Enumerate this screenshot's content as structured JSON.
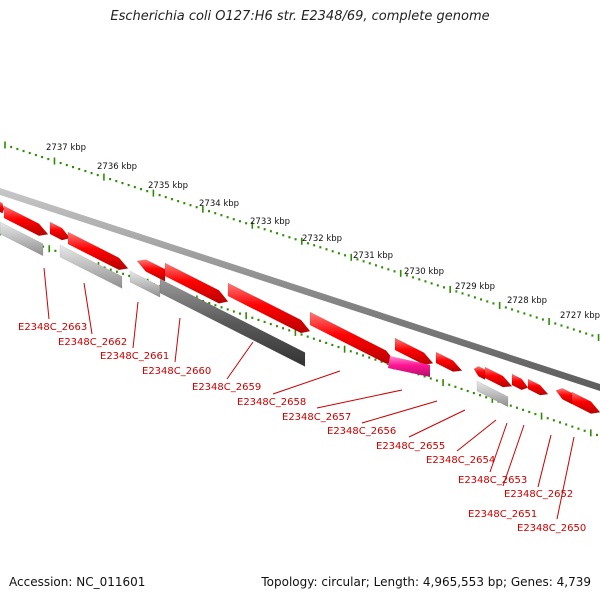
{
  "title": "Escherichia coli O127:H6 str. E2348/69, complete genome",
  "footer": {
    "accession": "Accession: NC_011601",
    "summary": "Topology: circular; Length: 4,965,553 bp; Genes: 4,739"
  },
  "scale_unit": "kbp",
  "scale_labels": [
    "2737 kbp",
    "2736 kbp",
    "2735 kbp",
    "2734 kbp",
    "2733 kbp",
    "2732 kbp",
    "2731 kbp",
    "2730 kbp",
    "2729 kbp",
    "2728 kbp",
    "2727 kbp"
  ],
  "gene_labels": [
    "E2348C_2663",
    "E2348C_2662",
    "E2348C_2661",
    "E2348C_2660",
    "E2348C_2659",
    "E2348C_2658",
    "E2348C_2657",
    "E2348C_2656",
    "E2348C_2655",
    "E2348C_2654",
    "E2348C_2653",
    "E2348C_2652",
    "E2348C_2651",
    "E2348C_2650"
  ],
  "colors": {
    "gene": "#ff0000",
    "gene_highlight": "#ff1493",
    "feature_light": "#b8b8b8",
    "feature_dark": "#555555",
    "backbone": "#888888",
    "tick": "#2e8b00",
    "label": "#cc0000"
  }
}
